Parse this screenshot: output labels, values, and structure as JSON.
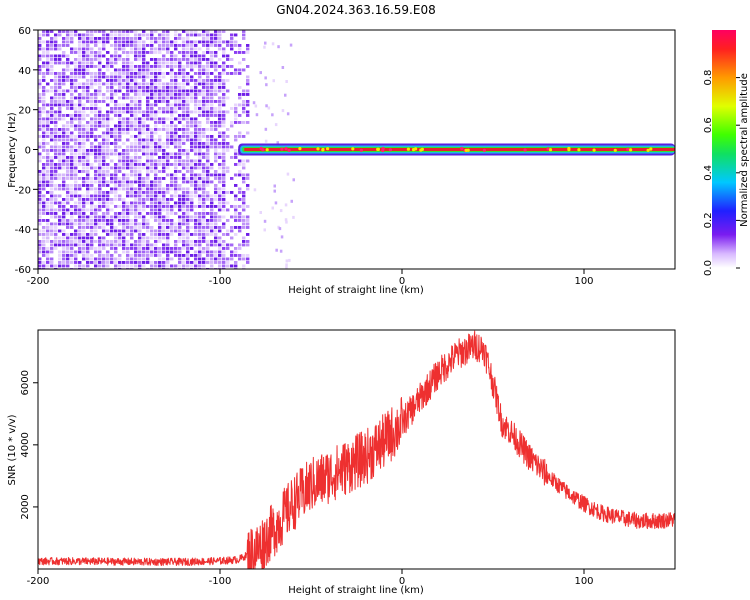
{
  "title": "GN04.2024.363.16.59.E08",
  "colors": {
    "snr_line": "#ee3030",
    "ridge": "#e8202a",
    "noise": "#7a2cf0"
  },
  "colorbar": {
    "label": "Normalized spectral amplitude",
    "ticks": [
      "0.0",
      "0.2",
      "0.4",
      "0.6",
      "0.8"
    ],
    "range": [
      0,
      1
    ],
    "colormap": "rainbow"
  },
  "chart_data": [
    {
      "type": "heatmap",
      "xlabel": "Height of straight line (km)",
      "ylabel": "Frequency (Hz)",
      "xlim": [
        -200,
        150
      ],
      "ylim": [
        -60,
        60
      ],
      "xticks": [
        -200,
        -100,
        0,
        100
      ],
      "yticks": [
        -60,
        -40,
        -20,
        0,
        20,
        40,
        60
      ],
      "xtick_labels": [
        "-200",
        "-100",
        "0",
        "100"
      ],
      "ytick_labels": [
        "-60",
        "-40",
        "-20",
        "0",
        "20",
        "40",
        "60"
      ],
      "noise_region_x": [
        -200,
        -88
      ],
      "ridge_start_x": -90,
      "ridge_frequency": 0
    },
    {
      "type": "line",
      "xlabel": "Height of straight line (km)",
      "ylabel": "SNR (10 * v/v)",
      "xlim": [
        -200,
        150
      ],
      "ylim": [
        0,
        7700
      ],
      "xticks": [
        -200,
        -100,
        0,
        100
      ],
      "yticks": [
        2000,
        4000,
        6000
      ],
      "xtick_labels": [
        "-200",
        "-100",
        "0",
        "100"
      ],
      "ytick_labels": [
        "2000",
        "4000",
        "6000"
      ],
      "series": [
        {
          "x": [
            -200,
            -180,
            -160,
            -140,
            -120,
            -100,
            -90,
            -80,
            -70,
            -60,
            -50,
            -40,
            -30,
            -20,
            -10,
            0,
            10,
            20,
            30,
            40,
            45,
            50,
            55,
            60,
            70,
            80,
            90,
            100,
            110,
            120,
            130,
            140,
            150
          ],
          "values": [
            250,
            250,
            240,
            230,
            230,
            260,
            300,
            600,
            1300,
            2100,
            2700,
            3000,
            3300,
            3600,
            4100,
            4700,
            5500,
            6300,
            6900,
            7200,
            7100,
            6000,
            4700,
            4400,
            3600,
            3000,
            2500,
            2100,
            1800,
            1650,
            1550,
            1550,
            1600
          ]
        }
      ]
    }
  ]
}
